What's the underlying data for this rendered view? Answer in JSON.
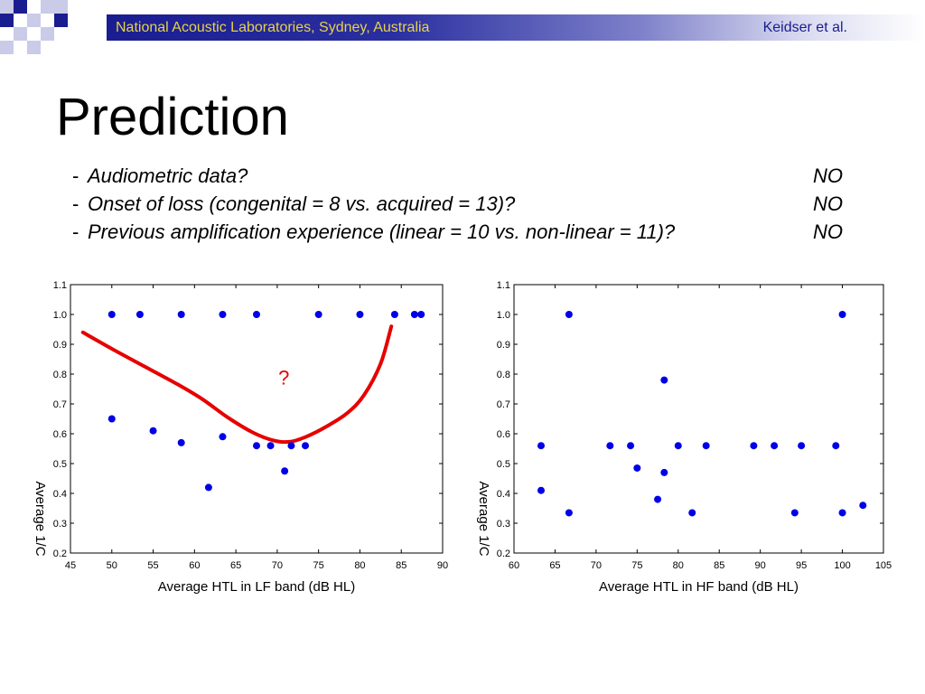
{
  "header": {
    "left_text": "National Acoustic Laboratories, Sydney, Australia",
    "right_text": "Keidser et al.",
    "colors": {
      "bar": "#1a1d8f",
      "left_text": "#e6d24a",
      "logo_dark": "#1a1d8f",
      "logo_light": "#c9cbe8"
    }
  },
  "title": "Prediction",
  "bullets": [
    {
      "dash": "-",
      "question": "Audiometric data?",
      "answer": "NO"
    },
    {
      "dash": "-",
      "question": "Onset of loss (congenital  = 8 vs. acquired = 13)?",
      "answer": "NO"
    },
    {
      "dash": "-",
      "question": "Previous amplification experience (linear = 10 vs. non-linear = 11)?",
      "answer": "NO"
    }
  ],
  "chart_data": [
    {
      "type": "scatter",
      "xlabel": "Average HTL in LF band (dB HL)",
      "ylabel": "Average 1/C",
      "xlim": [
        45,
        90
      ],
      "ylim": [
        0.2,
        1.1
      ],
      "xticks": [
        45,
        50,
        55,
        60,
        65,
        70,
        75,
        80,
        85,
        90
      ],
      "yticks": [
        0.2,
        0.3,
        0.4,
        0.5,
        0.6,
        0.7,
        0.8,
        0.9,
        1.0,
        1.1
      ],
      "point_color": "#0000e6",
      "points": [
        [
          50,
          1.0
        ],
        [
          53.4,
          1.0
        ],
        [
          58.4,
          1.0
        ],
        [
          63.4,
          1.0
        ],
        [
          67.5,
          1.0
        ],
        [
          75,
          1.0
        ],
        [
          80,
          1.0
        ],
        [
          84.2,
          1.0
        ],
        [
          86.6,
          1.0
        ],
        [
          87.4,
          1.0
        ],
        [
          50,
          0.65
        ],
        [
          55,
          0.61
        ],
        [
          58.4,
          0.57
        ],
        [
          61.7,
          0.42
        ],
        [
          63.4,
          0.59
        ],
        [
          67.5,
          0.56
        ],
        [
          69.2,
          0.56
        ],
        [
          70.9,
          0.475
        ],
        [
          71.7,
          0.56
        ],
        [
          73.4,
          0.56
        ]
      ],
      "fit_curve": {
        "color": "#e60000",
        "points": [
          [
            46.5,
            0.94
          ],
          [
            50,
            0.885
          ],
          [
            54,
            0.825
          ],
          [
            58,
            0.765
          ],
          [
            61,
            0.715
          ],
          [
            64,
            0.655
          ],
          [
            67,
            0.605
          ],
          [
            69.5,
            0.578
          ],
          [
            71.5,
            0.573
          ],
          [
            73.5,
            0.59
          ],
          [
            76,
            0.625
          ],
          [
            78.5,
            0.67
          ],
          [
            80.5,
            0.73
          ],
          [
            82.5,
            0.835
          ],
          [
            83.8,
            0.96
          ]
        ]
      },
      "annotation": {
        "text": "?",
        "x": 70.8,
        "y": 0.765,
        "color": "#e60000"
      }
    },
    {
      "type": "scatter",
      "xlabel": "Average HTL in HF band (dB HL)",
      "ylabel": "Average 1/C",
      "xlim": [
        60,
        105
      ],
      "ylim": [
        0.2,
        1.1
      ],
      "xticks": [
        60,
        65,
        70,
        75,
        80,
        85,
        90,
        95,
        100,
        105
      ],
      "yticks": [
        0.2,
        0.3,
        0.4,
        0.5,
        0.6,
        0.7,
        0.8,
        0.9,
        1.0,
        1.1
      ],
      "point_color": "#0000e6",
      "points": [
        [
          63.3,
          0.56
        ],
        [
          63.3,
          0.41
        ],
        [
          66.7,
          1.0
        ],
        [
          66.7,
          0.335
        ],
        [
          71.7,
          0.56
        ],
        [
          74.2,
          0.56
        ],
        [
          75,
          0.485
        ],
        [
          77.5,
          0.38
        ],
        [
          78.3,
          0.78
        ],
        [
          78.3,
          0.47
        ],
        [
          80,
          0.56
        ],
        [
          81.7,
          0.335
        ],
        [
          83.4,
          0.56
        ],
        [
          89.2,
          0.56
        ],
        [
          91.7,
          0.56
        ],
        [
          94.2,
          0.335
        ],
        [
          95,
          0.56
        ],
        [
          99.2,
          0.56
        ],
        [
          100,
          1.0
        ],
        [
          100,
          0.335
        ],
        [
          102.5,
          0.36
        ]
      ]
    }
  ]
}
